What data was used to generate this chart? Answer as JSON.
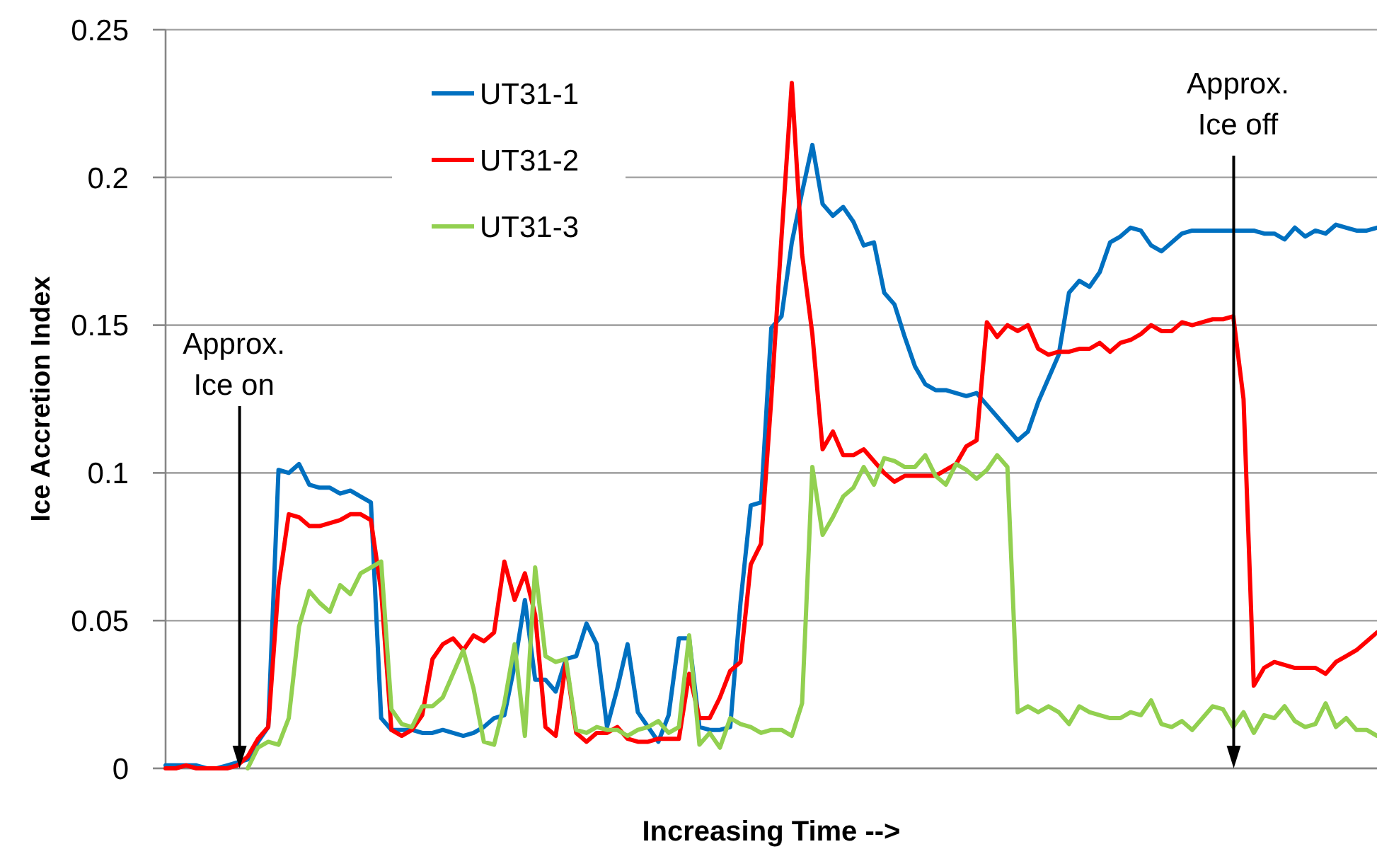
{
  "chart_data": {
    "type": "line",
    "xlabel": "Increasing Time -->",
    "ylabel": "Ice Accretion Index",
    "categories": [
      null,
      null,
      null,
      null,
      null,
      null,
      null,
      null,
      null,
      null,
      null,
      null,
      null,
      null,
      null,
      null,
      null,
      null,
      null,
      null,
      null,
      null,
      null,
      null,
      null,
      null,
      null,
      null,
      null,
      null,
      null,
      null,
      null,
      null,
      null,
      null,
      null,
      null,
      null,
      null,
      null,
      null,
      null,
      null,
      null,
      null,
      null,
      null,
      null,
      null,
      null,
      null,
      null,
      null,
      null,
      null,
      null,
      null,
      null,
      null,
      null,
      null,
      null,
      null,
      null,
      null,
      null,
      null,
      null,
      null,
      null,
      null,
      null,
      null,
      null,
      null,
      null,
      null,
      null,
      null,
      null,
      null,
      null,
      null,
      null,
      null,
      null,
      null,
      null,
      null,
      null,
      null,
      null,
      null,
      null,
      null,
      null,
      null,
      null,
      null,
      null,
      null,
      null,
      null,
      null,
      null,
      null,
      null,
      null,
      null,
      null,
      null,
      null,
      null,
      null,
      null,
      null,
      null,
      null
    ],
    "ylim": [
      0,
      0.25
    ],
    "yticks": [
      0,
      0.05,
      0.1,
      0.15,
      0.2,
      0.25
    ],
    "grid": "y",
    "legend": "top left",
    "tick_labels": "y",
    "annotations": [
      "Approx.\nIce on",
      "Approx.\nIce off"
    ],
    "series": [
      {
        "name": "UT31-1",
        "color": "#0070c0",
        "values": [
          0.001,
          0.001,
          0.001,
          0.001,
          0,
          0,
          0.001,
          0.002,
          0.003,
          0.009,
          0.014,
          0.101,
          0.1,
          0.103,
          0.096,
          0.095,
          0.095,
          0.093,
          0.094,
          0.092,
          0.09,
          0.017,
          0.013,
          0.013,
          0.013,
          0.012,
          0.012,
          0.013,
          0.012,
          0.011,
          0.012,
          0.014,
          0.017,
          0.018,
          0.035,
          0.057,
          0.03,
          0.03,
          0.026,
          0.037,
          0.038,
          0.049,
          0.042,
          0.014,
          0.027,
          0.042,
          0.019,
          0.014,
          0.009,
          0.018,
          0.044,
          0.044,
          0.014,
          0.013,
          0.013,
          0.014,
          0.056,
          0.089,
          0.09,
          0.149,
          0.153,
          0.178,
          0.195,
          0.211,
          0.191,
          0.187,
          0.19,
          0.185,
          0.177,
          0.178,
          0.161,
          0.157,
          0.146,
          0.136,
          0.13,
          0.128,
          0.128,
          0.127,
          0.126,
          0.127,
          0.123,
          0.119,
          0.115,
          0.111,
          0.114,
          0.124,
          0.132,
          0.14,
          0.161,
          0.165,
          0.163,
          0.168,
          0.178,
          0.18,
          0.183,
          0.182,
          0.177,
          0.175,
          0.178,
          0.181,
          0.182,
          0.182,
          0.182,
          0.182,
          0.182,
          0.182,
          0.182,
          0.181,
          0.181,
          0.179,
          0.183,
          0.18,
          0.182,
          0.181,
          0.184,
          0.183,
          0.182,
          0.182,
          0.183
        ]
      },
      {
        "name": "UT31-2",
        "color": "#ff0000",
        "values": [
          0,
          0,
          0.001,
          0,
          0,
          0,
          0,
          0.001,
          0.004,
          0.01,
          0.014,
          0.062,
          0.086,
          0.085,
          0.082,
          0.082,
          0.083,
          0.084,
          0.086,
          0.086,
          0.084,
          0.06,
          0.013,
          0.011,
          0.013,
          0.018,
          0.037,
          0.042,
          0.044,
          0.04,
          0.045,
          0.043,
          0.046,
          0.07,
          0.057,
          0.066,
          0.052,
          0.014,
          0.011,
          0.036,
          0.012,
          0.009,
          0.012,
          0.012,
          0.014,
          0.01,
          0.009,
          0.009,
          0.01,
          0.01,
          0.01,
          0.032,
          0.017,
          0.017,
          0.024,
          0.033,
          0.036,
          0.069,
          0.076,
          0.125,
          0.18,
          0.232,
          0.174,
          0.147,
          0.108,
          0.114,
          0.106,
          0.106,
          0.108,
          0.104,
          0.1,
          0.097,
          0.099,
          0.099,
          0.099,
          0.099,
          0.101,
          0.103,
          0.109,
          0.111,
          0.151,
          0.146,
          0.15,
          0.148,
          0.15,
          0.142,
          0.14,
          0.141,
          0.141,
          0.142,
          0.142,
          0.144,
          0.141,
          0.144,
          0.145,
          0.147,
          0.15,
          0.148,
          0.148,
          0.151,
          0.15,
          0.151,
          0.152,
          0.152,
          0.153,
          0.125,
          0.028,
          0.034,
          0.036,
          0.035,
          0.034,
          0.034,
          0.034,
          0.032,
          0.036,
          0.038,
          0.04,
          0.043,
          0.046
        ]
      },
      {
        "name": "UT31-3",
        "color": "#92d050",
        "values": [
          null,
          null,
          null,
          null,
          null,
          null,
          null,
          null,
          0,
          0.007,
          0.009,
          0.008,
          0.017,
          0.048,
          0.06,
          0.056,
          0.053,
          0.062,
          0.059,
          0.066,
          0.068,
          0.07,
          0.02,
          0.015,
          0.014,
          0.021,
          0.021,
          0.024,
          0.032,
          0.04,
          0.027,
          0.009,
          0.008,
          0.022,
          0.042,
          0.011,
          0.068,
          0.038,
          0.036,
          0.037,
          0.013,
          0.012,
          0.014,
          0.013,
          0.013,
          0.011,
          0.013,
          0.014,
          0.016,
          0.012,
          0.014,
          0.045,
          0.008,
          0.012,
          0.007,
          0.017,
          0.015,
          0.014,
          0.012,
          0.013,
          0.013,
          0.011,
          0.022,
          0.102,
          0.079,
          0.085,
          0.092,
          0.095,
          0.102,
          0.096,
          0.105,
          0.104,
          0.102,
          0.102,
          0.106,
          0.099,
          0.096,
          0.103,
          0.101,
          0.098,
          0.101,
          0.106,
          0.102,
          0.019,
          0.021,
          0.019,
          0.021,
          0.019,
          0.015,
          0.021,
          0.019,
          0.018,
          0.017,
          0.017,
          0.019,
          0.018,
          0.023,
          0.015,
          0.014,
          0.016,
          0.013,
          0.017,
          0.021,
          0.02,
          0.014,
          0.019,
          0.012,
          0.018,
          0.017,
          0.021,
          0.016,
          0.014,
          0.015,
          0.022,
          0.014,
          0.017,
          0.013,
          0.013,
          0.011
        ]
      }
    ]
  }
}
